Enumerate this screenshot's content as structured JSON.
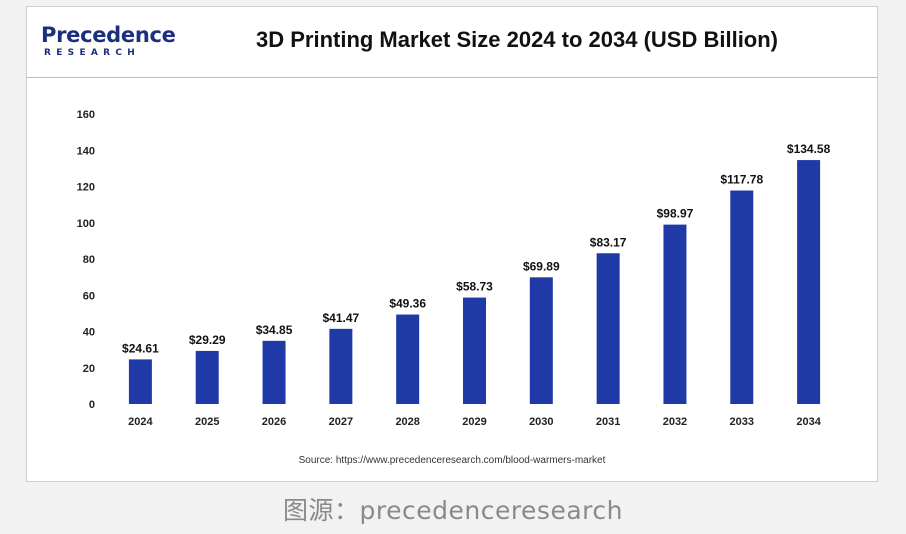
{
  "brand": {
    "logo_text": "Precedence",
    "logo_subtext": "RESEARCH",
    "color": "#1b2f7f"
  },
  "chart_data": {
    "type": "bar",
    "title": "3D Printing Market Size 2024 to 2034 (USD Billion)",
    "categories": [
      "2024",
      "2025",
      "2026",
      "2027",
      "2028",
      "2029",
      "2030",
      "2031",
      "2032",
      "2033",
      "2034"
    ],
    "values": [
      24.61,
      29.29,
      34.85,
      41.47,
      49.36,
      58.73,
      69.89,
      83.17,
      98.97,
      117.78,
      134.58
    ],
    "value_labels": [
      "$24.61",
      "$29.29",
      "$34.85",
      "$41.47",
      "$49.36",
      "$58.73",
      "$69.89",
      "$83.17",
      "$98.97",
      "$117.78",
      "$134.58"
    ],
    "xlabel": "",
    "ylabel": "",
    "ylim": [
      0,
      160
    ],
    "yticks": [
      "0",
      "20",
      "40",
      "60",
      "80",
      "100",
      "120",
      "140",
      "160"
    ],
    "grid": false,
    "bar_color": "#1f3aa6"
  },
  "source_text": "Source: https://www.precedenceresearch.com/blood-warmers-market",
  "caption": "图源：precedenceresearch"
}
